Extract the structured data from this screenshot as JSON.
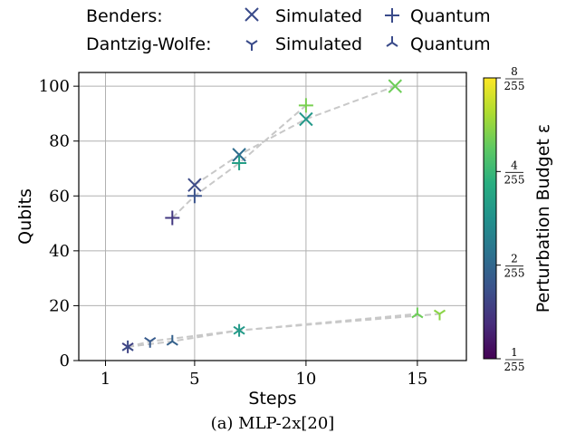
{
  "legend": {
    "rows": [
      {
        "method": "Benders:",
        "sim_label": "Simulated",
        "q_label": "Quantum"
      },
      {
        "method": "Dantzig-Wolfe:",
        "sim_label": "Simulated",
        "q_label": "Quantum"
      }
    ]
  },
  "caption": "(a) MLP-2x[20]",
  "chart_data": {
    "type": "scatter",
    "xlabel": "Steps",
    "ylabel": "Qubits",
    "xlim": [
      -0.2,
      17.2
    ],
    "ylim": [
      0,
      105
    ],
    "xticks": [
      1,
      5,
      10,
      15
    ],
    "yticks": [
      0,
      20,
      40,
      60,
      80,
      100
    ],
    "grid": true,
    "colorbar": {
      "label": "Perturbation Budget ε",
      "scale": "log",
      "ticks": [
        {
          "value": 1,
          "num": "1",
          "den": "255"
        },
        {
          "value": 2,
          "num": "2",
          "den": "255"
        },
        {
          "value": 4,
          "num": "4",
          "den": "255"
        },
        {
          "value": 8,
          "num": "8",
          "den": "255"
        }
      ]
    },
    "series": [
      {
        "name": "Benders: Simulated",
        "marker": "x",
        "connected": true,
        "points": [
          {
            "x": 5,
            "y": 64,
            "eps": 1.6
          },
          {
            "x": 7,
            "y": 75,
            "eps": 2.1
          },
          {
            "x": 10,
            "y": 88,
            "eps": 3.0
          },
          {
            "x": 14,
            "y": 100,
            "eps": 5.0
          }
        ]
      },
      {
        "name": "Benders: Quantum",
        "marker": "plus",
        "connected": true,
        "points": [
          {
            "x": 4,
            "y": 52,
            "eps": 1.4
          },
          {
            "x": 5,
            "y": 60,
            "eps": 1.7
          },
          {
            "x": 7,
            "y": 72,
            "eps": 3.2
          },
          {
            "x": 10,
            "y": 93,
            "eps": 5.2
          }
        ]
      },
      {
        "name": "Dantzig-Wolfe: Simulated",
        "marker": "tri_down",
        "connected": true,
        "points": [
          {
            "x": 2,
            "y": 5,
            "eps": 1.5
          },
          {
            "x": 3,
            "y": 7,
            "eps": 1.8
          },
          {
            "x": 7,
            "y": 11,
            "eps": 3.0
          },
          {
            "x": 16,
            "y": 17,
            "eps": 5.5
          }
        ]
      },
      {
        "name": "Dantzig-Wolfe: Quantum",
        "marker": "tri_up",
        "connected": true,
        "points": [
          {
            "x": 2,
            "y": 5,
            "eps": 1.6
          },
          {
            "x": 4,
            "y": 7,
            "eps": 1.9
          },
          {
            "x": 7,
            "y": 11,
            "eps": 3.1
          },
          {
            "x": 15,
            "y": 17,
            "eps": 5.0
          }
        ]
      }
    ]
  }
}
